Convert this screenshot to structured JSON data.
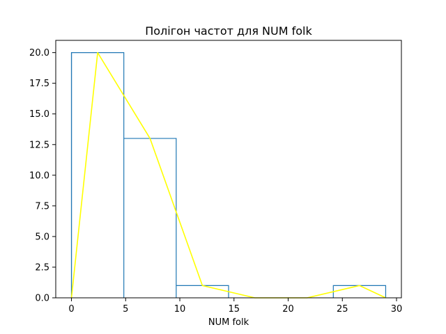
{
  "chart_data": {
    "type": "histogram",
    "title": "Полігон частот для NUM folk",
    "xlabel": "NUM folk",
    "ylabel": "",
    "xlim": [
      -1.45,
      30.45
    ],
    "ylim": [
      0,
      21
    ],
    "xticks": [
      0,
      5,
      10,
      15,
      20,
      25,
      30
    ],
    "xtick_labels": [
      "0",
      "5",
      "10",
      "15",
      "20",
      "25",
      "30"
    ],
    "yticks": [
      0.0,
      2.5,
      5.0,
      7.5,
      10.0,
      12.5,
      15.0,
      17.5,
      20.0
    ],
    "ytick_labels": [
      "0.0",
      "2.5",
      "5.0",
      "7.5",
      "10.0",
      "12.5",
      "15.0",
      "17.5",
      "20.0"
    ],
    "grid": false,
    "histogram": {
      "bin_edges": [
        0,
        4.833,
        9.667,
        14.5,
        19.333,
        24.167,
        29
      ],
      "counts": [
        20,
        13,
        1,
        0,
        0,
        1
      ],
      "color": "#1f77b4"
    },
    "polygon": {
      "x": [
        0,
        2.417,
        7.25,
        12.083,
        16.917,
        21.75,
        26.583,
        29
      ],
      "y": [
        0,
        20,
        13,
        1,
        0,
        0,
        1,
        0
      ],
      "color": "#ffff00"
    }
  }
}
